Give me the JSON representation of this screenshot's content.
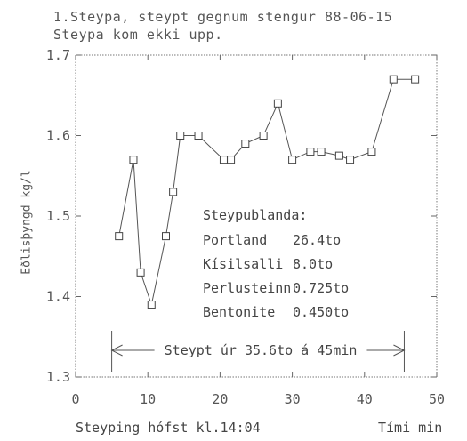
{
  "title_lines": [
    "1.Steypa, steypt gegnum stengur 88-06-15",
    "Steypa kom ekki upp."
  ],
  "chart_data": {
    "type": "line",
    "ylabel": "Eðlisþyngd kg/l",
    "xlabel_left": "Steyping hófst kl.14:04",
    "xlabel_right": "Tími min",
    "xlim": [
      0,
      50
    ],
    "ylim": [
      1.3,
      1.7
    ],
    "xticks": [
      "0",
      "10",
      "20",
      "30",
      "40",
      "50"
    ],
    "yticks": [
      "1.3",
      "1.4",
      "1.5",
      "1.6",
      "1.7"
    ],
    "series": [
      {
        "x": [
          6,
          8,
          9,
          10.5,
          12.5,
          13.5,
          14.5,
          17,
          20.5,
          21.5,
          23.5,
          26,
          28,
          30,
          32.5,
          34,
          36.5,
          38,
          41,
          44,
          47
        ],
        "y": [
          1.475,
          1.57,
          1.43,
          1.39,
          1.475,
          1.53,
          1.6,
          1.6,
          1.57,
          1.57,
          1.59,
          1.6,
          1.64,
          1.57,
          1.58,
          1.58,
          1.575,
          1.57,
          1.58,
          1.67,
          1.67
        ]
      }
    ],
    "legend": {
      "heading": "Steypublanda:",
      "items": [
        {
          "name": "Portland",
          "value": "26.4to"
        },
        {
          "name": "Kísilsalli",
          "value": "8.0to"
        },
        {
          "name": "Perlusteinn",
          "value": "0.725to"
        },
        {
          "name": "Bentonite",
          "value": "0.450to"
        }
      ]
    },
    "annotation": {
      "text": "Steypt úr 35.6to á 45min",
      "x_start": 5,
      "x_end": 45.5
    },
    "grid": false
  }
}
